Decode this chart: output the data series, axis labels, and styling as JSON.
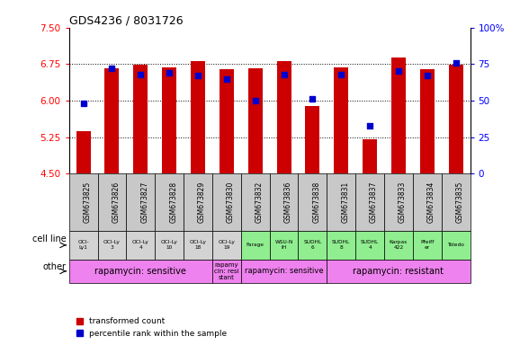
{
  "title": "GDS4236 / 8031726",
  "samples": [
    "GSM673825",
    "GSM673826",
    "GSM673827",
    "GSM673828",
    "GSM673829",
    "GSM673830",
    "GSM673832",
    "GSM673836",
    "GSM673838",
    "GSM673831",
    "GSM673837",
    "GSM673833",
    "GSM673834",
    "GSM673835"
  ],
  "transformed_count": [
    5.37,
    6.67,
    6.74,
    6.69,
    6.82,
    6.64,
    6.67,
    6.82,
    5.88,
    6.69,
    5.2,
    6.88,
    6.64,
    6.74
  ],
  "percentile_rank": [
    48,
    72,
    68,
    69,
    67,
    65,
    50,
    68,
    51,
    68,
    33,
    70,
    67,
    76
  ],
  "cell_line": [
    "OCI-\nLy1",
    "OCI-Ly\n3",
    "OCI-Ly\n4",
    "OCI-Ly\n10",
    "OCI-Ly\n18",
    "OCI-Ly\n19",
    "Farage",
    "WSU-N\nIH",
    "SUDHL\n6",
    "SUDHL\n8",
    "SUDHL\n4",
    "Karpas\n422",
    "Pfeiff\ner",
    "Toledo"
  ],
  "cell_line_colors": [
    "#d3d3d3",
    "#d3d3d3",
    "#d3d3d3",
    "#d3d3d3",
    "#d3d3d3",
    "#d3d3d3",
    "#90ee90",
    "#90ee90",
    "#90ee90",
    "#90ee90",
    "#90ee90",
    "#90ee90",
    "#90ee90",
    "#90ee90"
  ],
  "sample_row_color": "#c8c8c8",
  "other_groups": [
    {
      "start": 0,
      "end": 4,
      "text": "rapamycin: sensitive",
      "color": "#ee82ee",
      "fontsize": 7
    },
    {
      "start": 5,
      "end": 5,
      "text": "rapamy\ncin: resi\nstant",
      "color": "#ee82ee",
      "fontsize": 5
    },
    {
      "start": 6,
      "end": 8,
      "text": "rapamycin: sensitive",
      "color": "#ee82ee",
      "fontsize": 6
    },
    {
      "start": 9,
      "end": 13,
      "text": "rapamycin: resistant",
      "color": "#ee82ee",
      "fontsize": 7
    }
  ],
  "ylim_left": [
    4.5,
    7.5
  ],
  "ylim_right": [
    0,
    100
  ],
  "yticks_left": [
    4.5,
    5.25,
    6.0,
    6.75,
    7.5
  ],
  "yticks_right": [
    0,
    25,
    50,
    75,
    100
  ],
  "bar_color": "#cc0000",
  "dot_color": "#0000cc",
  "bar_bottom": 4.5,
  "bar_width": 0.5
}
